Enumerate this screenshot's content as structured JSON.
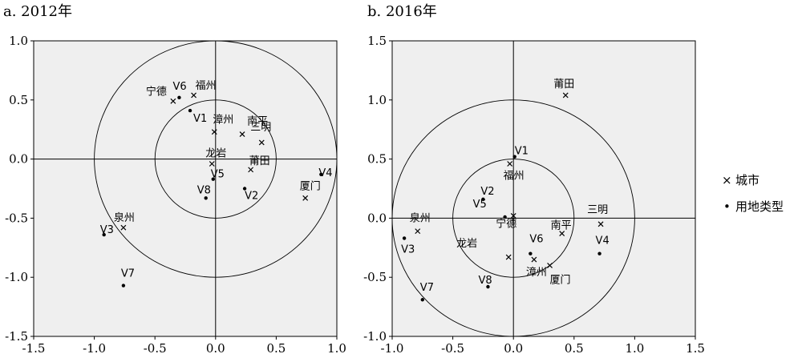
{
  "chart_data": [
    {
      "type": "scatter",
      "title": "a. 2012年",
      "xlim": [
        -1.5,
        1.0
      ],
      "ylim": [
        -1.5,
        1.0
      ],
      "xticks": [
        "-1.5",
        "-1.0",
        "-0.5",
        "0.0",
        "0.5",
        "1.0"
      ],
      "yticks": [
        "1.0",
        "0.5",
        "0.0",
        "-0.5",
        "-1.0",
        "-1.5"
      ],
      "circles": [
        1.0,
        0.5
      ],
      "cities": [
        {
          "label": "宁德",
          "x": -0.35,
          "y": 0.49
        },
        {
          "label": "福州",
          "x": -0.18,
          "y": 0.54
        },
        {
          "label": "漳州",
          "x": -0.01,
          "y": 0.23
        },
        {
          "label": "南平",
          "x": 0.22,
          "y": 0.21
        },
        {
          "label": "三明",
          "x": 0.38,
          "y": 0.14
        },
        {
          "label": "龙岩",
          "x": -0.03,
          "y": -0.04
        },
        {
          "label": "莆田",
          "x": 0.29,
          "y": -0.09
        },
        {
          "label": "厦门",
          "x": 0.74,
          "y": -0.33
        },
        {
          "label": "泉州",
          "x": -0.76,
          "y": -0.58
        }
      ],
      "land_types": [
        {
          "label": "V6",
          "x": -0.3,
          "y": 0.52
        },
        {
          "label": "V1",
          "x": -0.21,
          "y": 0.41
        },
        {
          "label": "V5",
          "x": -0.02,
          "y": -0.17
        },
        {
          "label": "V8",
          "x": -0.08,
          "y": -0.33
        },
        {
          "label": "V2",
          "x": 0.24,
          "y": -0.25
        },
        {
          "label": "V4",
          "x": 0.87,
          "y": -0.13
        },
        {
          "label": "V3",
          "x": -0.92,
          "y": -0.64
        },
        {
          "label": "V7",
          "x": -0.76,
          "y": -1.07
        }
      ]
    },
    {
      "type": "scatter",
      "title": "b. 2016年",
      "xlim": [
        -1.0,
        1.5
      ],
      "ylim": [
        -1.0,
        1.5
      ],
      "xticks": [
        "-1.0",
        "-0.5",
        "0.0",
        "0.5",
        "1.0",
        "1.5"
      ],
      "yticks": [
        "1.5",
        "1.0",
        "0.5",
        "0.0",
        "-0.5",
        "-1.0"
      ],
      "circles": [
        1.0,
        0.5
      ],
      "cities": [
        {
          "label": "莆田",
          "x": 0.43,
          "y": 1.04
        },
        {
          "label": "福州",
          "x": -0.03,
          "y": 0.46
        },
        {
          "label": "宁德",
          "x": 0.0,
          "y": 0.02
        },
        {
          "label": "泉州",
          "x": -0.79,
          "y": -0.11
        },
        {
          "label": "南平",
          "x": 0.4,
          "y": -0.13
        },
        {
          "label": "三明",
          "x": 0.72,
          "y": -0.05
        },
        {
          "label": "龙岩",
          "x": -0.04,
          "y": -0.33
        },
        {
          "label": "漳州",
          "x": 0.17,
          "y": -0.35
        },
        {
          "label": "厦门",
          "x": 0.3,
          "y": -0.4
        }
      ],
      "land_types": [
        {
          "label": "V1",
          "x": 0.01,
          "y": 0.52
        },
        {
          "label": "V2",
          "x": -0.25,
          "y": 0.16
        },
        {
          "label": "V5",
          "x": -0.07,
          "y": 0.01
        },
        {
          "label": "V3",
          "x": -0.9,
          "y": -0.17
        },
        {
          "label": "V6",
          "x": 0.14,
          "y": -0.3
        },
        {
          "label": "V4",
          "x": 0.71,
          "y": -0.3
        },
        {
          "label": "V8",
          "x": -0.21,
          "y": -0.58
        },
        {
          "label": "V7",
          "x": -0.75,
          "y": -0.69
        }
      ]
    }
  ],
  "legend": {
    "city_label": "城市",
    "land_label": "用地类型",
    "city_marker": "×",
    "land_marker": "•"
  },
  "colors": {
    "panel_bg": "#efefef",
    "ink": "#000000"
  }
}
